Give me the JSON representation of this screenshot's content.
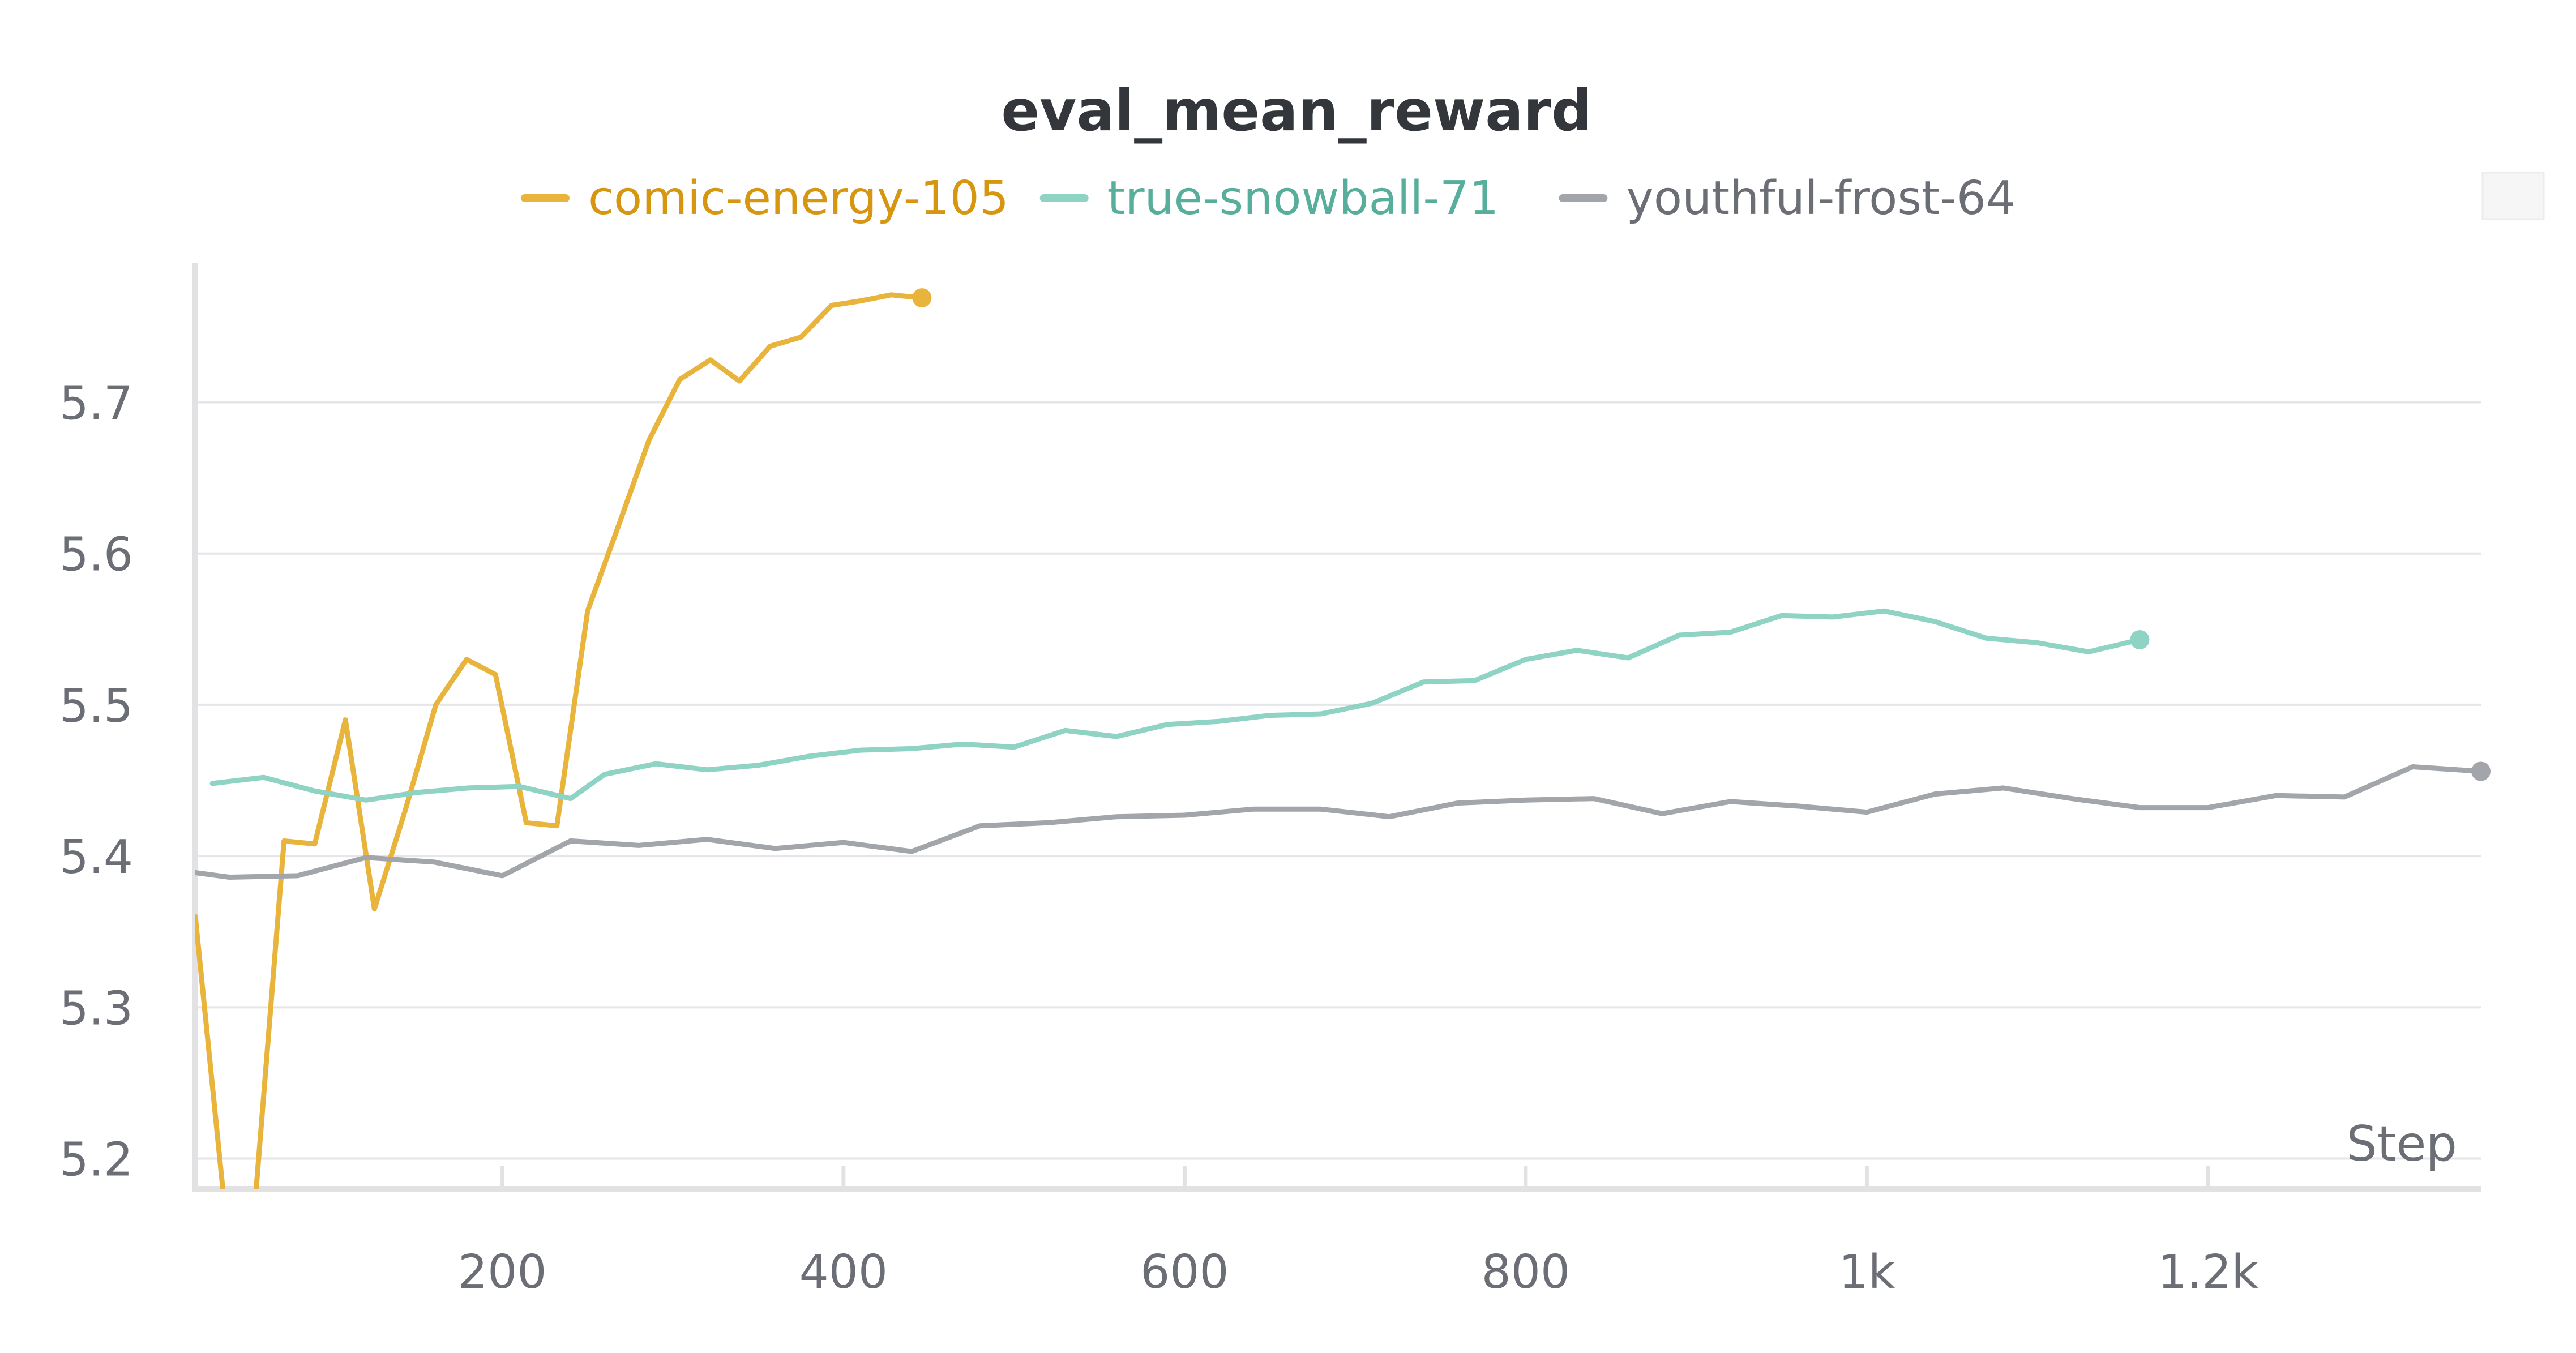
{
  "chart_data": {
    "type": "line",
    "title": "eval_mean_reward",
    "xlabel": "Step",
    "ylabel": "",
    "xlim": [
      20,
      1360
    ],
    "ylim": [
      5.18,
      5.79
    ],
    "x_ticks": [
      200,
      400,
      600,
      800,
      1000,
      1200
    ],
    "x_tick_labels": [
      "200",
      "400",
      "600",
      "800",
      "1k",
      "1.2k"
    ],
    "y_ticks": [
      5.2,
      5.3,
      5.4,
      5.5,
      5.6,
      5.7
    ],
    "y_tick_labels": [
      "5.2",
      "5.3",
      "5.4",
      "5.5",
      "5.6",
      "5.7"
    ],
    "grid": true,
    "legend_position": "top-center",
    "series": [
      {
        "name": "comic-energy-105",
        "color": "#e8b43c",
        "label_color": "#d6960f",
        "x": [
          20,
          37,
          55,
          72,
          90,
          108,
          125,
          143,
          161,
          179,
          196,
          214,
          232,
          250,
          268,
          286,
          304,
          322,
          339,
          357,
          375,
          393,
          410,
          428,
          446
        ],
        "y": [
          5.36,
          5.17,
          5.17,
          5.41,
          5.408,
          5.49,
          5.365,
          5.43,
          5.5,
          5.53,
          5.52,
          5.422,
          5.42,
          5.562,
          5.618,
          5.675,
          5.715,
          5.728,
          5.714,
          5.737,
          5.743,
          5.764,
          5.767,
          5.771,
          5.769
        ]
      },
      {
        "name": "true-snowball-71",
        "color": "#8fd3c4",
        "label_color": "#56ae9b",
        "x": [
          30,
          60,
          90,
          120,
          150,
          180,
          210,
          240,
          260,
          290,
          320,
          350,
          380,
          410,
          440,
          470,
          500,
          530,
          560,
          590,
          620,
          650,
          680,
          710,
          740,
          770,
          800,
          830,
          860,
          890,
          920,
          950,
          980,
          1010,
          1040,
          1070,
          1100,
          1130,
          1160
        ],
        "y": [
          5.448,
          5.452,
          5.443,
          5.437,
          5.442,
          5.445,
          5.446,
          5.438,
          5.454,
          5.461,
          5.457,
          5.46,
          5.466,
          5.47,
          5.471,
          5.474,
          5.472,
          5.483,
          5.479,
          5.487,
          5.489,
          5.493,
          5.494,
          5.501,
          5.515,
          5.516,
          5.53,
          5.536,
          5.531,
          5.546,
          5.548,
          5.559,
          5.558,
          5.562,
          5.555,
          5.544,
          5.541,
          5.535,
          5.543
        ]
      },
      {
        "name": "youthful-frost-64",
        "color": "#a2a6ab",
        "label_color": "#6b6e75",
        "x": [
          20,
          40,
          80,
          120,
          160,
          200,
          240,
          280,
          320,
          360,
          400,
          440,
          480,
          520,
          560,
          600,
          640,
          680,
          720,
          760,
          800,
          840,
          880,
          920,
          960,
          1000,
          1040,
          1080,
          1120,
          1160,
          1200,
          1240,
          1280,
          1320,
          1360
        ],
        "y": [
          5.389,
          5.386,
          5.387,
          5.399,
          5.396,
          5.387,
          5.41,
          5.407,
          5.411,
          5.405,
          5.409,
          5.403,
          5.42,
          5.422,
          5.426,
          5.427,
          5.431,
          5.431,
          5.426,
          5.435,
          5.437,
          5.438,
          5.428,
          5.436,
          5.433,
          5.429,
          5.441,
          5.445,
          5.438,
          5.432,
          5.432,
          5.44,
          5.439,
          5.459,
          5.456
        ]
      }
    ]
  }
}
